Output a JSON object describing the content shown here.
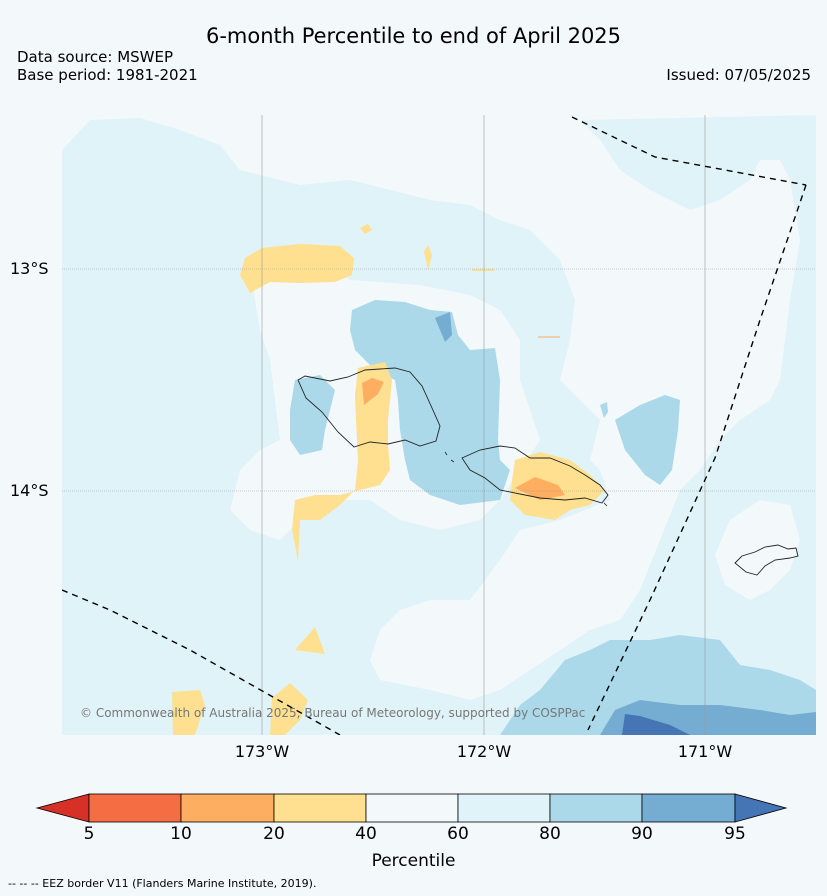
{
  "title": "6-month Percentile to end of April 2025",
  "data_source": "Data source: MSWEP",
  "base_period": "Base period: 1981-2021",
  "issued": "Issued: 07/05/2025",
  "lat_labels": [
    "13°S",
    "14°S"
  ],
  "lon_labels": [
    "173°W",
    "172°W",
    "171°W"
  ],
  "copyright": "© Commonwealth of Australia 2025, Bureau of Meteorology, supported by COSPPac",
  "colorbar": {
    "ticks": [
      "5",
      "10",
      "20",
      "40",
      "60",
      "80",
      "90",
      "95"
    ],
    "label": "Percentile",
    "colors": [
      "#d73027",
      "#f46d43",
      "#fdae61",
      "#fee090",
      "#f3f8fb",
      "#e0f3f8",
      "#abd9e9",
      "#74add1",
      "#4575b4"
    ]
  },
  "footnote": "-- -- -- EEZ border V11 (Flanders Marine Institute, 2019)."
}
